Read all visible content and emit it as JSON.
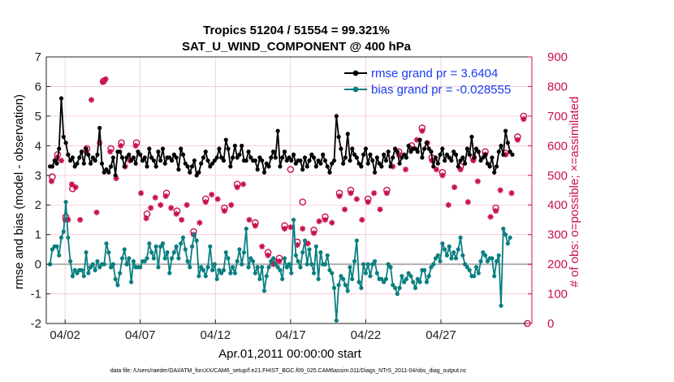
{
  "chart_data": {
    "type": "line",
    "title": "Tropics 51204 / 51554 = 99.321%",
    "subtitle": "SAT_U_WIND_COMPONENT @ 400 hPa",
    "xlabel": "Apr.01,2011 00:00:00 start",
    "ylabel": "rmse and bias (model - observation)",
    "y2label": "# of obs: o=possible; ×=assimilated",
    "xlim": [
      0.5,
      32.8
    ],
    "ylim": [
      -2,
      7
    ],
    "y2lim": [
      0,
      900
    ],
    "x_ticks": [
      1.75,
      6.75,
      11.75,
      16.75,
      21.75,
      26.75
    ],
    "x_tick_labels": [
      "04/02",
      "04/07",
      "04/12",
      "04/17",
      "04/22",
      "04/27"
    ],
    "y_ticks": [
      "-2",
      "-1",
      "0",
      "1",
      "2",
      "3",
      "4",
      "5",
      "6",
      "7"
    ],
    "y2_ticks": [
      "0",
      "100",
      "200",
      "300",
      "400",
      "500",
      "600",
      "700",
      "800",
      "900"
    ],
    "colors": {
      "rmse": "#000000",
      "bias": "#0a7f80",
      "obs": "#c8104e",
      "zero_line": "#b0b0b0"
    },
    "series": [
      {
        "name": "rmse grand pr = 3.6404",
        "axis": "left",
        "values": [
          3.3,
          3.3,
          3.5,
          3.4,
          3.9,
          5.6,
          4.3,
          4.1,
          3.7,
          3.5,
          3.6,
          3.3,
          3.4,
          3.6,
          3.8,
          3.4,
          3.9,
          3.7,
          3.4,
          3.6,
          3.5,
          3.7,
          4.6,
          3.4,
          3.1,
          3.2,
          3.1,
          3.3,
          3.6,
          3.0,
          3.8,
          3.8,
          3.6,
          3.3,
          3.6,
          3.7,
          3.5,
          3.6,
          3.4,
          3.8,
          3.7,
          3.5,
          3.6,
          3.3,
          3.9,
          3.6,
          3.5,
          3.3,
          3.8,
          3.5,
          3.9,
          3.4,
          3.6,
          3.6,
          3.5,
          3.7,
          3.6,
          3.2,
          3.9,
          3.7,
          3.4,
          3.3,
          3.1,
          3.3,
          3.5,
          3.0,
          3.1,
          3.4,
          3.6,
          3.8,
          3.5,
          3.3,
          3.4,
          3.5,
          3.6,
          3.9,
          3.6,
          3.5,
          4.2,
          3.9,
          3.3,
          3.6,
          4.0,
          3.6,
          3.7,
          4.0,
          3.5,
          3.5,
          3.8,
          3.6,
          3.5,
          3.5,
          3.2,
          3.6,
          3.5,
          3.1,
          3.4,
          3.3,
          3.6,
          3.8,
          3.6,
          4.5,
          3.3,
          3.6,
          3.8,
          3.5,
          3.6,
          3.5,
          3.7,
          3.4,
          3.5,
          3.5,
          3.2,
          3.6,
          3.3,
          3.5,
          3.7,
          3.6,
          3.3,
          3.5,
          3.4,
          3.7,
          3.5,
          3.3,
          3.1,
          3.4,
          3.5,
          5.0,
          4.3,
          3.9,
          3.4,
          3.6,
          4.4,
          3.5,
          3.9,
          3.7,
          3.6,
          3.4,
          3.3,
          3.7,
          3.9,
          3.4,
          3.7,
          3.5,
          3.1,
          3.6,
          3.4,
          3.3,
          3.7,
          3.5,
          3.8,
          3.3,
          3.6,
          3.9,
          3.8,
          3.4,
          3.6,
          3.7,
          3.6,
          4.0,
          3.8,
          3.9,
          3.9,
          3.8,
          4.2,
          3.6,
          3.9,
          4.1,
          3.9,
          3.8,
          3.3,
          3.6,
          3.4,
          3.7,
          3.9,
          3.5,
          3.7,
          3.6,
          3.5,
          3.8,
          3.7,
          3.3,
          3.5,
          3.6,
          3.4,
          3.9,
          3.7,
          4.3,
          3.6,
          3.9,
          3.8,
          3.5,
          3.6,
          3.7,
          3.4,
          3.3,
          3.6,
          3.1,
          3.3,
          3.8,
          4.0,
          3.7,
          4.5,
          4.1,
          3.8,
          3.7
        ],
        "x_start": 0.75,
        "x_step": 0.15
      },
      {
        "name": "bias grand pr = -0.028555",
        "axis": "left",
        "values": [
          0.0,
          0.5,
          0.6,
          0.6,
          0.3,
          0.9,
          1.1,
          2.1,
          0.9,
          0.1,
          -0.4,
          -0.2,
          -0.3,
          -0.2,
          -0.2,
          -0.4,
          0.4,
          -0.3,
          -0.1,
          0.0,
          -0.2,
          0.1,
          -0.1,
          0.0,
          0.0,
          0.7,
          0.4,
          -0.1,
          0.0,
          -0.5,
          -0.7,
          -0.3,
          0.2,
          0.5,
          0.0,
          0.2,
          -0.6,
          0.1,
          -0.1,
          -0.1,
          -0.1,
          0.1,
          0.1,
          0.2,
          0.7,
          0.4,
          0.2,
          0.6,
          -0.1,
          0.6,
          0.7,
          0.2,
          0.4,
          -0.3,
          0.2,
          0.4,
          0.6,
          0.2,
          0.7,
          0.9,
          0.5,
          0.1,
          -0.1,
          0.6,
          1.0,
          0.8,
          -0.4,
          -0.1,
          -0.2,
          -0.4,
          -0.1,
          0.6,
          -0.2,
          0.0,
          -0.5,
          -0.2,
          -0.3,
          -0.2,
          0.4,
          0.2,
          -0.3,
          -0.1,
          -0.3,
          0.1,
          0.5,
          0.0,
          0.4,
          1.2,
          -0.1,
          0.2,
          0.1,
          -0.3,
          -0.1,
          -0.5,
          -0.1,
          -0.9,
          -0.4,
          -0.1,
          0.1,
          0.2,
          0.0,
          -0.1,
          -0.2,
          -0.5,
          0.2,
          -0.1,
          0.0,
          -0.3,
          1.5,
          0.3,
          0.1,
          -0.1,
          0.4,
          0.8,
          0.0,
          0.5,
          0.0,
          -0.3,
          0.6,
          -0.5,
          0.4,
          0.0,
          0.0,
          0.3,
          -0.2,
          -0.3,
          -0.8,
          -1.9,
          -0.7,
          -0.4,
          -0.5,
          -0.7,
          -0.9,
          -0.1,
          -0.5,
          0.1,
          0.8,
          -0.6,
          -0.8,
          0.0,
          -0.3,
          0.0,
          -0.4,
          0.0,
          0.1,
          -0.3,
          -0.5,
          -0.5,
          -0.6,
          -0.5,
          0.0,
          -0.1,
          -0.7,
          -0.8,
          -1.0,
          -0.8,
          -0.4,
          -0.6,
          -0.5,
          -0.3,
          -0.4,
          -0.6,
          -0.8,
          -0.5,
          -0.6,
          -0.2,
          -0.2,
          -0.6,
          -0.4,
          -0.1,
          0.0,
          0.2,
          0.3,
          0.1,
          0.7,
          0.5,
          0.3,
          0.6,
          0.2,
          0.4,
          0.2,
          0.5,
          0.9,
          0.3,
          0.0,
          -0.1,
          -0.2,
          -0.4,
          -0.4,
          -0.1,
          -0.3,
          0.1,
          0.4,
          0.3,
          0.1,
          0.2,
          0.2,
          -0.4,
          0.1,
          0.3,
          -1.4,
          1.2,
          1.0,
          0.7,
          0.9
        ],
        "x_start": 0.75,
        "x_step": 0.15
      },
      {
        "name": "# obs assimilated",
        "axis": "right",
        "marker": "star",
        "points": [
          [
            0.85,
            480
          ],
          [
            1.2,
            560
          ],
          [
            1.5,
            550
          ],
          [
            1.75,
            350
          ],
          [
            1.95,
            350
          ],
          [
            2.2,
            470
          ],
          [
            2.45,
            460
          ],
          [
            2.75,
            350
          ],
          [
            3.15,
            580
          ],
          [
            3.5,
            755
          ],
          [
            3.85,
            375
          ],
          [
            4.05,
            610
          ],
          [
            4.25,
            815
          ],
          [
            4.45,
            825
          ],
          [
            4.75,
            580
          ],
          [
            5.15,
            490
          ],
          [
            5.45,
            600
          ],
          [
            5.75,
            530
          ],
          [
            6.05,
            550
          ],
          [
            6.45,
            600
          ],
          [
            6.8,
            440
          ],
          [
            7.15,
            355
          ],
          [
            7.45,
            390
          ],
          [
            7.75,
            425
          ],
          [
            8.1,
            400
          ],
          [
            8.45,
            430
          ],
          [
            8.8,
            390
          ],
          [
            9.15,
            370
          ],
          [
            9.5,
            350
          ],
          [
            9.85,
            400
          ],
          [
            10.3,
            300
          ],
          [
            10.7,
            340
          ],
          [
            11.1,
            410
          ],
          [
            11.5,
            435
          ],
          [
            11.9,
            420
          ],
          [
            12.35,
            380
          ],
          [
            12.8,
            400
          ],
          [
            13.2,
            460
          ],
          [
            13.6,
            470
          ],
          [
            14.0,
            350
          ],
          [
            14.4,
            330
          ],
          [
            14.85,
            260
          ],
          [
            15.25,
            230
          ],
          [
            15.6,
            200
          ],
          [
            16.0,
            210
          ],
          [
            16.35,
            320
          ],
          [
            16.75,
            325
          ],
          [
            17.2,
            265
          ],
          [
            17.55,
            320
          ],
          [
            17.9,
            270
          ],
          [
            18.3,
            305
          ],
          [
            18.65,
            345
          ],
          [
            19.05,
            350
          ],
          [
            19.5,
            340
          ],
          [
            20.0,
            430
          ],
          [
            20.35,
            385
          ],
          [
            20.75,
            440
          ],
          [
            21.15,
            420
          ],
          [
            21.5,
            350
          ],
          [
            21.9,
            410
          ],
          [
            22.3,
            440
          ],
          [
            22.7,
            385
          ],
          [
            23.15,
            440
          ],
          [
            23.55,
            530
          ],
          [
            23.95,
            570
          ],
          [
            24.4,
            520
          ],
          [
            24.8,
            590
          ],
          [
            25.15,
            620
          ],
          [
            25.5,
            650
          ],
          [
            25.85,
            610
          ],
          [
            26.15,
            550
          ],
          [
            26.45,
            520
          ],
          [
            26.85,
            500
          ],
          [
            27.25,
            400
          ],
          [
            27.65,
            460
          ],
          [
            28.05,
            520
          ],
          [
            28.55,
            410
          ],
          [
            28.9,
            550
          ],
          [
            29.2,
            480
          ],
          [
            29.7,
            570
          ],
          [
            30.05,
            360
          ],
          [
            30.4,
            380
          ],
          [
            30.7,
            450
          ],
          [
            31.05,
            570
          ],
          [
            31.45,
            440
          ],
          [
            31.85,
            620
          ],
          [
            32.25,
            690
          ]
        ]
      },
      {
        "name": "# obs possible",
        "axis": "right",
        "marker": "circle",
        "points": [
          [
            0.9,
            495
          ],
          [
            1.25,
            570
          ],
          [
            1.8,
            360
          ],
          [
            2.25,
            455
          ],
          [
            3.2,
            590
          ],
          [
            4.3,
            818
          ],
          [
            4.8,
            590
          ],
          [
            5.5,
            610
          ],
          [
            6.5,
            610
          ],
          [
            7.2,
            370
          ],
          [
            8.5,
            440
          ],
          [
            9.2,
            380
          ],
          [
            10.3,
            310
          ],
          [
            11.1,
            420
          ],
          [
            12.35,
            390
          ],
          [
            13.2,
            470
          ],
          [
            14.4,
            340
          ],
          [
            15.25,
            240
          ],
          [
            15.6,
            210
          ],
          [
            16.0,
            220
          ],
          [
            16.35,
            330
          ],
          [
            16.75,
            520
          ],
          [
            17.2,
            275
          ],
          [
            17.55,
            410
          ],
          [
            18.3,
            315
          ],
          [
            19.05,
            360
          ],
          [
            20.0,
            440
          ],
          [
            20.75,
            450
          ],
          [
            21.9,
            420
          ],
          [
            23.15,
            450
          ],
          [
            23.95,
            580
          ],
          [
            24.8,
            600
          ],
          [
            25.5,
            660
          ],
          [
            26.15,
            560
          ],
          [
            26.85,
            510
          ],
          [
            28.05,
            530
          ],
          [
            28.9,
            560
          ],
          [
            29.7,
            580
          ],
          [
            30.4,
            390
          ],
          [
            31.05,
            575
          ],
          [
            31.85,
            630
          ],
          [
            32.25,
            700
          ],
          [
            32.5,
            0
          ]
        ]
      }
    ]
  },
  "footer": "data file: /Users/raeder/DAI/ATM_forcXX/CAM6_setup/f.e21.FHIST_BGC.f09_025.CAM6assim.011/Diags_NTrS_2011-04/obs_diag_output.nc"
}
